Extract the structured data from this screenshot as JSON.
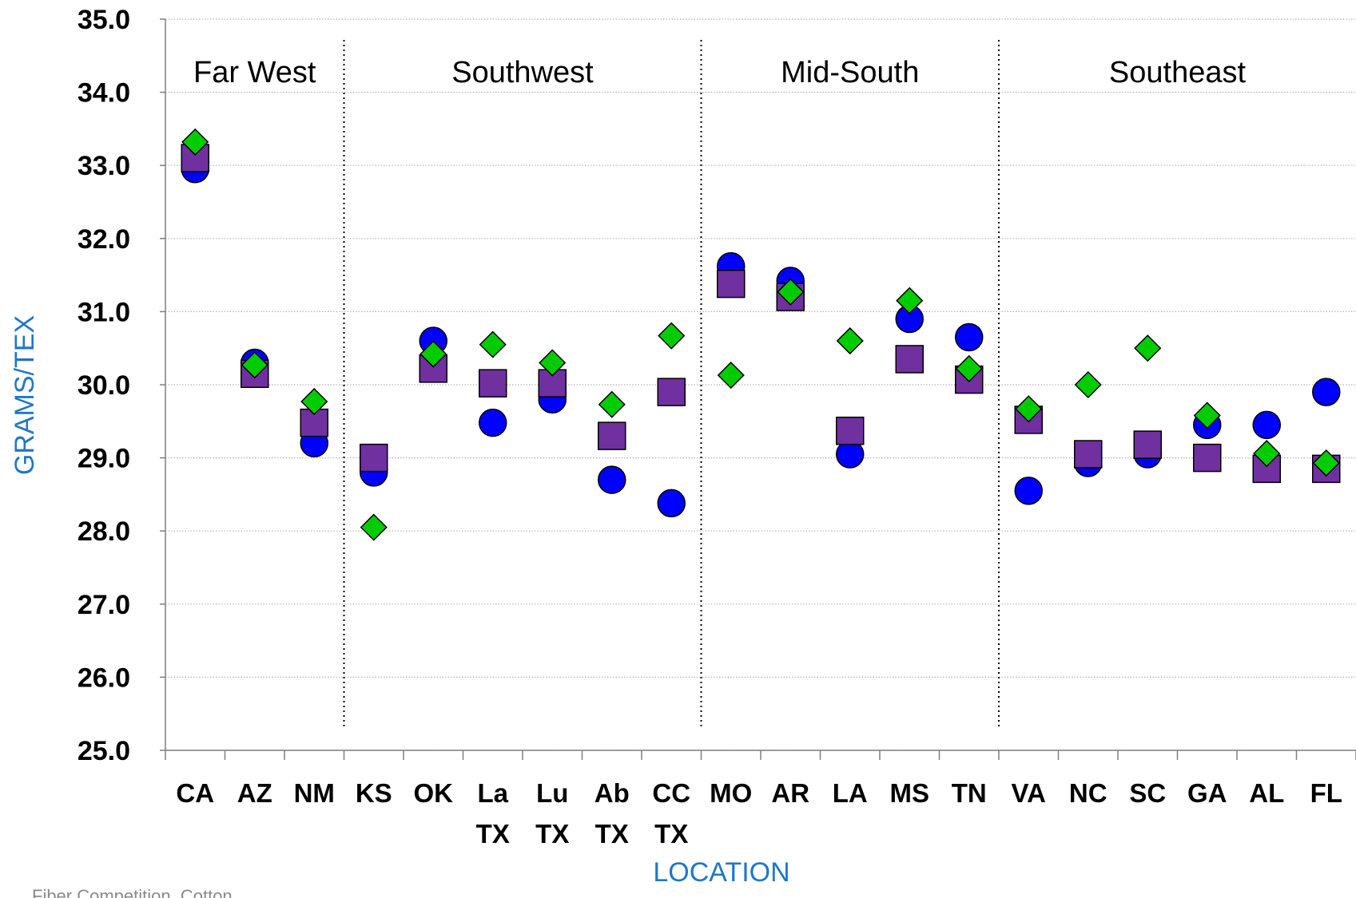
{
  "footer_text": "Fiber Competition, Cotton",
  "chart_data": {
    "type": "scatter",
    "xlabel": "LOCATION",
    "ylabel": "GRAMS/TEX",
    "ylim": [
      25.0,
      35.0
    ],
    "y_ticks": [
      "25.0",
      "26.0",
      "27.0",
      "28.0",
      "29.0",
      "30.0",
      "31.0",
      "32.0",
      "33.0",
      "34.0",
      "35.0"
    ],
    "grid": "horizontal dotted",
    "categories": [
      [
        "CA"
      ],
      [
        "AZ"
      ],
      [
        "NM"
      ],
      [
        "KS"
      ],
      [
        "OK"
      ],
      [
        "La",
        "TX"
      ],
      [
        "Lu",
        "TX"
      ],
      [
        "Ab",
        "TX"
      ],
      [
        "CC",
        "TX"
      ],
      [
        "MO"
      ],
      [
        "AR"
      ],
      [
        "LA"
      ],
      [
        "MS"
      ],
      [
        "TN"
      ],
      [
        "VA"
      ],
      [
        "NC"
      ],
      [
        "SC"
      ],
      [
        "GA"
      ],
      [
        "AL"
      ],
      [
        "FL"
      ]
    ],
    "regions": [
      {
        "name": "Far West",
        "from": 0,
        "to": 2
      },
      {
        "name": "Southwest",
        "from": 3,
        "to": 8
      },
      {
        "name": "Mid-South",
        "from": 9,
        "to": 13
      },
      {
        "name": "Southeast",
        "from": 14,
        "to": 19
      }
    ],
    "series": [
      {
        "marker": "circle",
        "color": "#0000ff",
        "values": [
          32.95,
          30.3,
          29.2,
          28.8,
          30.6,
          29.48,
          29.8,
          28.7,
          28.38,
          31.62,
          31.42,
          29.05,
          30.9,
          30.65,
          28.55,
          28.93,
          29.05,
          29.45,
          29.45,
          29.9
        ]
      },
      {
        "marker": "square",
        "color": "#7030a0",
        "values": [
          33.1,
          30.15,
          29.48,
          29.0,
          30.22,
          30.02,
          30.02,
          29.3,
          29.9,
          31.38,
          31.2,
          29.37,
          30.35,
          30.07,
          29.52,
          29.05,
          29.18,
          29.0,
          28.85,
          28.85
        ]
      },
      {
        "marker": "diamond",
        "color": "#00cc00",
        "values": [
          33.32,
          30.27,
          29.77,
          28.05,
          30.42,
          30.55,
          30.3,
          29.73,
          30.67,
          30.13,
          31.27,
          30.6,
          31.15,
          30.22,
          29.67,
          30.0,
          30.5,
          29.58,
          29.06,
          28.93
        ]
      }
    ]
  }
}
